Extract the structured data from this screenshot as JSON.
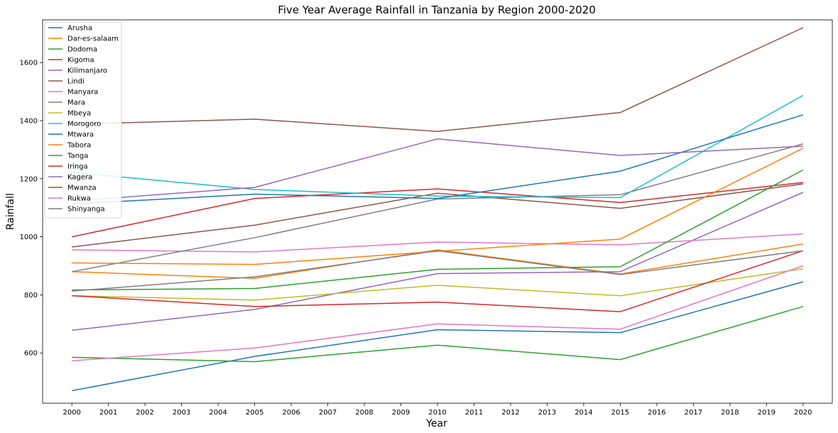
{
  "chart_data": {
    "type": "line",
    "title": "Five Year Average Rainfall in Tanzania by Region 2000-2020",
    "xlabel": "Year",
    "ylabel": "Rainfall",
    "x": [
      2000,
      2005,
      2010,
      2015,
      2020
    ],
    "xticks": [
      "2000",
      "2001",
      "2002",
      "2003",
      "2004",
      "2005",
      "2006",
      "2007",
      "2008",
      "2009",
      "2010",
      "2011",
      "2012",
      "2013",
      "2014",
      "2015",
      "2016",
      "2017",
      "2018",
      "2019",
      "2020"
    ],
    "yticks": [
      "600",
      "800",
      "1000",
      "1200",
      "1400",
      "1600"
    ],
    "xlim": [
      1999.2,
      2020.8
    ],
    "ylim": [
      427,
      1747
    ],
    "grid": false,
    "legend_position": "top-left",
    "series": [
      {
        "name": "Arusha",
        "color": "#1f77b4",
        "values": [
          470,
          588,
          680,
          670,
          845
        ]
      },
      {
        "name": "Dar-es-salaam",
        "color": "#ff7f0e",
        "values": [
          880,
          857,
          955,
          872,
          975
        ]
      },
      {
        "name": "Dodoma",
        "color": "#2ca02c",
        "values": [
          585,
          570,
          627,
          577,
          760
        ]
      },
      {
        "name": "Kigoma",
        "color": "#d62728",
        "values": [
          1000,
          1132,
          1165,
          1118,
          1187
        ]
      },
      {
        "name": "Kilimanjaro",
        "color": "#9467bd",
        "values": [
          678,
          750,
          873,
          880,
          1153
        ]
      },
      {
        "name": "Lindi",
        "color": "#8c564b",
        "values": [
          965,
          1040,
          1150,
          1098,
          1182
        ]
      },
      {
        "name": "Manyara",
        "color": "#e377c2",
        "values": [
          955,
          948,
          982,
          972,
          1010
        ]
      },
      {
        "name": "Mara",
        "color": "#7f7f7f",
        "values": [
          880,
          997,
          1130,
          1145,
          1320
        ]
      },
      {
        "name": "Mbeya",
        "color": "#bcbd22",
        "values": [
          797,
          782,
          833,
          797,
          890
        ]
      },
      {
        "name": "Morogoro",
        "color": "#17becf",
        "values": [
          1222,
          1163,
          1140,
          1135,
          1487
        ]
      },
      {
        "name": "Mtwara",
        "color": "#1f77b4",
        "values": [
          1113,
          1147,
          1132,
          1226,
          1420
        ]
      },
      {
        "name": "Tabora",
        "color": "#ff7f0e",
        "values": [
          910,
          905,
          950,
          992,
          1305
        ]
      },
      {
        "name": "Tanga",
        "color": "#2ca02c",
        "values": [
          817,
          822,
          888,
          897,
          1230
        ]
      },
      {
        "name": "Iringa",
        "color": "#d62728",
        "values": [
          797,
          760,
          775,
          742,
          952
        ]
      },
      {
        "name": "Kagera",
        "color": "#9467bd",
        "values": [
          1123,
          1170,
          1337,
          1280,
          1312
        ]
      },
      {
        "name": "Mwanza",
        "color": "#8c564b",
        "values": [
          1388,
          1405,
          1363,
          1428,
          1720
        ]
      },
      {
        "name": "Rukwa",
        "color": "#e377c2",
        "values": [
          573,
          617,
          700,
          682,
          900
        ]
      },
      {
        "name": "Shinyanga",
        "color": "#7f7f7f",
        "values": [
          813,
          862,
          952,
          870,
          952
        ]
      }
    ]
  }
}
